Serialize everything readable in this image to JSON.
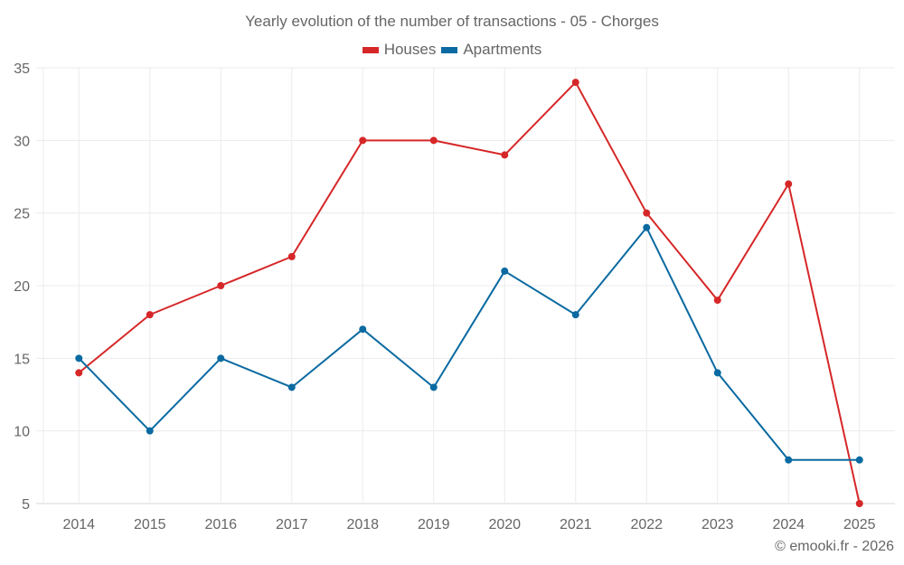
{
  "chart_data": {
    "type": "line",
    "title": "Yearly evolution of the number of transactions - 05 - Chorges",
    "xlabel": "",
    "ylabel": "",
    "categories": [
      "2014",
      "2015",
      "2016",
      "2017",
      "2018",
      "2019",
      "2020",
      "2021",
      "2022",
      "2023",
      "2024",
      "2025"
    ],
    "series": [
      {
        "name": "Houses",
        "color": "#d62728",
        "values": [
          14,
          18,
          20,
          22,
          30,
          30,
          29,
          34,
          25,
          19,
          27,
          5
        ]
      },
      {
        "name": "Apartments",
        "color": "#0a6aa1",
        "values": [
          15,
          10,
          15,
          13,
          17,
          13,
          21,
          18,
          24,
          14,
          8,
          8
        ]
      }
    ],
    "ylim": [
      5,
      35
    ],
    "yticks": [
      5,
      10,
      15,
      20,
      25,
      30,
      35
    ],
    "grid": true,
    "legend_position": "top-center"
  },
  "credit": "© emooki.fr - 2026"
}
